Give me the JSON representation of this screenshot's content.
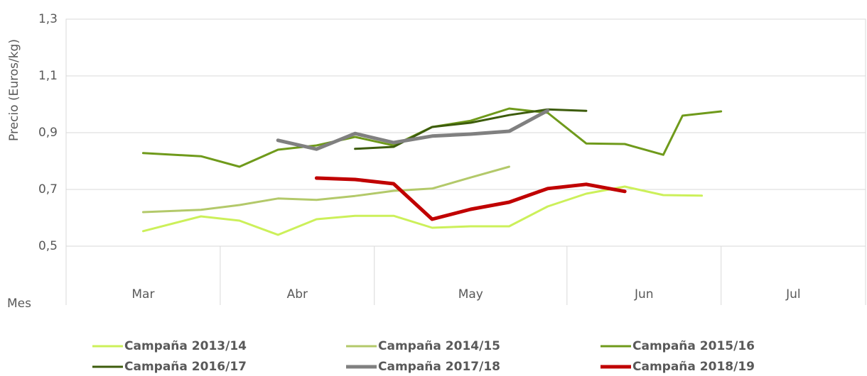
{
  "chart_data": {
    "type": "line",
    "y_label": "Precio (Euros/kg)",
    "x_label": "Mes",
    "categories": [
      "Mar",
      "Abr",
      "May",
      "Jun",
      "Jul"
    ],
    "xticks": [
      0,
      4,
      8,
      13,
      17,
      20.75
    ],
    "xlim": [
      0,
      20.75
    ],
    "ylim": [
      0.5,
      1.3
    ],
    "yticks": [
      {
        "value": 0.5,
        "label": "0,5"
      },
      {
        "value": 0.7,
        "label": "0,7"
      },
      {
        "value": 0.9,
        "label": "0,9"
      },
      {
        "value": 1.1,
        "label": "1,1"
      },
      {
        "value": 1.3,
        "label": "1,3"
      }
    ],
    "grid": true,
    "legend": "bottom",
    "series": [
      {
        "name": "Campaña 2013/14",
        "color": "#ccf05a",
        "line_width": 3,
        "x": [
          2,
          3.5,
          4.5,
          5.5,
          6.5,
          7.5,
          8.5,
          9.5,
          10.5,
          11.5,
          12.5,
          13.5,
          14.5,
          15.5,
          16.5
        ],
        "values": [
          0.553,
          0.605,
          0.59,
          0.54,
          0.595,
          0.607,
          0.607,
          0.565,
          0.57,
          0.57,
          0.64,
          0.685,
          0.71,
          0.68,
          0.678
        ]
      },
      {
        "name": "Campaña 2014/15",
        "color": "#b3c96a",
        "line_width": 3,
        "x": [
          2,
          3.5,
          4.5,
          5.5,
          6.5,
          7.5,
          8.5,
          9.5,
          10.5,
          11.5
        ],
        "values": [
          0.62,
          0.628,
          0.645,
          0.668,
          0.663,
          0.677,
          0.695,
          0.703,
          0.742,
          0.78
        ]
      },
      {
        "name": "Campaña 2015/16",
        "color": "#6f9a1b",
        "line_width": 3,
        "x": [
          2,
          3.5,
          4.5,
          5.5,
          6.5,
          7.5,
          8.5,
          9.5,
          10.5,
          11.5,
          12.5,
          13.5,
          14.5,
          15.5,
          16,
          17
        ],
        "values": [
          0.828,
          0.817,
          0.78,
          0.84,
          0.855,
          0.885,
          0.855,
          0.92,
          0.942,
          0.985,
          0.97,
          0.862,
          0.86,
          0.822,
          0.96,
          0.975
        ]
      },
      {
        "name": "Campaña 2016/17",
        "color": "#3d5c0c",
        "line_width": 3,
        "x": [
          7.5,
          8.5,
          9.5,
          10.5,
          11.5,
          12.5,
          13.5
        ],
        "values": [
          0.843,
          0.85,
          0.92,
          0.935,
          0.962,
          0.982,
          0.977
        ]
      },
      {
        "name": "Campaña 2017/18",
        "color": "#808080",
        "line_width": 5,
        "x": [
          5.5,
          6.5,
          7.5,
          8.5,
          9.5,
          10.5,
          11.5,
          12.5
        ],
        "values": [
          0.873,
          0.842,
          0.897,
          0.865,
          0.888,
          0.895,
          0.905,
          0.978
        ]
      },
      {
        "name": "Campaña 2018/19",
        "color": "#c00000",
        "line_width": 5,
        "x": [
          6.5,
          7.5,
          8.5,
          9.5,
          10.5,
          11.5,
          12.5,
          13.5,
          14.5
        ],
        "values": [
          0.74,
          0.735,
          0.72,
          0.595,
          0.63,
          0.655,
          0.703,
          0.718,
          0.693
        ]
      }
    ]
  }
}
